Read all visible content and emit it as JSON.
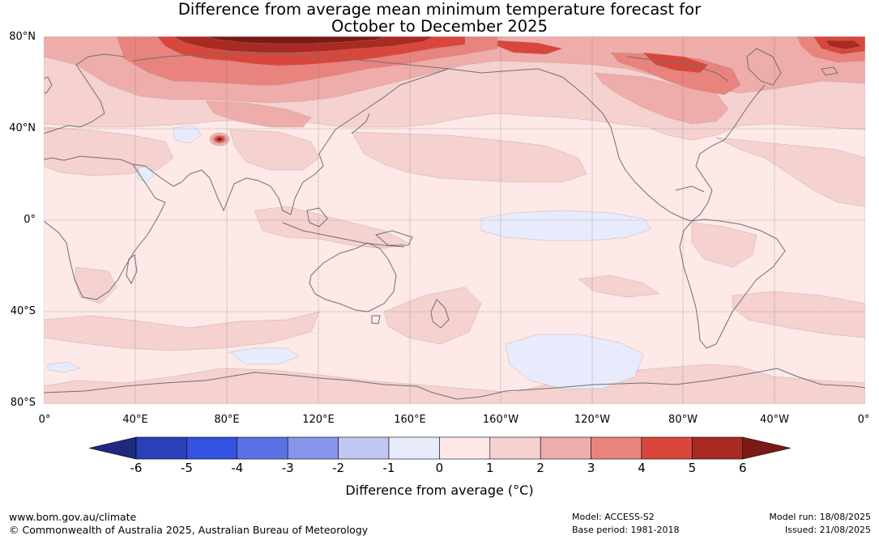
{
  "title_line1": "Difference from average mean minimum temperature forecast for",
  "title_line2": "October to December 2025",
  "lat_labels": [
    "80°N",
    "40°N",
    "0°",
    "40°S",
    "80°S"
  ],
  "lon_labels": [
    "0°",
    "40°E",
    "80°E",
    "120°E",
    "160°E",
    "160°W",
    "120°W",
    "80°W",
    "40°W",
    "0°"
  ],
  "colorbar": {
    "ticks": [
      "-6",
      "-5",
      "-4",
      "-3",
      "-2",
      "-1",
      "0",
      "1",
      "2",
      "3",
      "4",
      "5",
      "6"
    ],
    "colors": [
      "#1d2a80",
      "#2a40b8",
      "#3352e0",
      "#5b72e6",
      "#8796ea",
      "#c0c7f3",
      "#e8ebfb",
      "#fce9e8",
      "#f5d1cf",
      "#eeadaa",
      "#e8837e",
      "#d9473c",
      "#a92a22",
      "#7b1a14"
    ],
    "label": "Difference from average (°C)"
  },
  "legend_colors": {
    "c0_1": "#fce9e8",
    "c1_2": "#f5d1cf",
    "c2_3": "#eeadaa",
    "c3_4": "#e8837e",
    "c4_5": "#d9473c",
    "c5_6": "#a92a22",
    "c6p": "#7b1a14",
    "cneg": "#e8ebfb",
    "coast": "#707070",
    "grid": "#606060"
  },
  "footer": {
    "website": "www.bom.gov.au/climate",
    "copyright": "© Commonwealth of Australia 2025, Australian Bureau of Meteorology",
    "model": "Model: ACCESS-S2",
    "base_period": "Base period: 1981-2018",
    "model_run": "Model run: 18/08/2025",
    "issued": "Issued: 21/08/2025"
  }
}
